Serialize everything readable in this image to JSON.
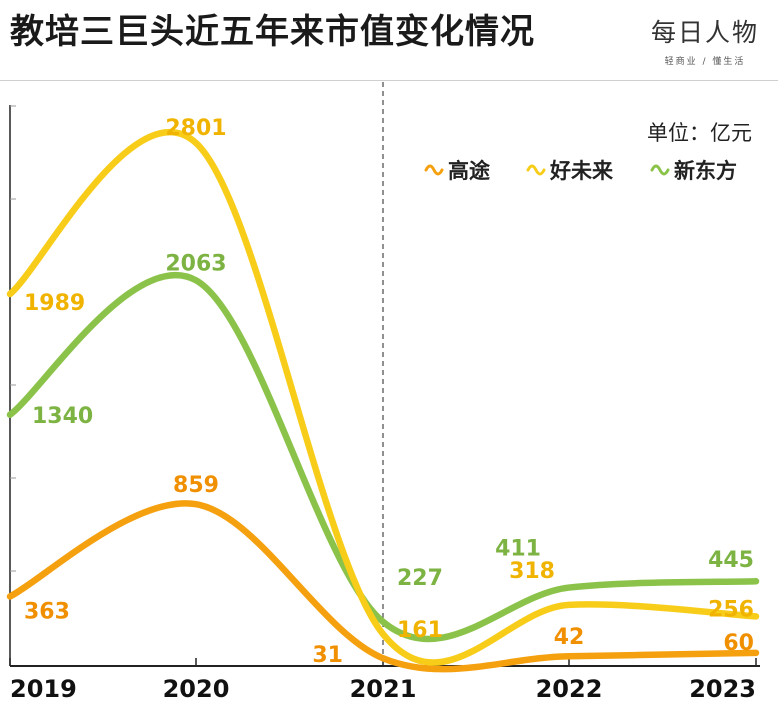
{
  "title": "教培三巨头近五年来市值变化情况",
  "brand": {
    "name": "每日人物",
    "tagline": "轻商业 / 懂生活"
  },
  "colors": {
    "tal_line": "#f7cd1a",
    "neworiental_line": "#8bc34a",
    "gaotu_line": "#f5a00f",
    "tal_label": "#f0b400",
    "neworiental_label": "#7cb342",
    "gaotu_label": "#f09000",
    "axis": "#222222",
    "divider": "#222222"
  },
  "chart_data": {
    "type": "line",
    "title": "教培三巨头近五年来市值变化情况",
    "unit_label": "单位：亿元",
    "x": [
      "2019",
      "2020",
      "2021",
      "2022",
      "2023"
    ],
    "xlabel": "",
    "ylabel": "",
    "ylim": [
      0,
      3000
    ],
    "legend_position": "top-right",
    "divider_at": "2021",
    "series": [
      {
        "key": "tal",
        "name": "好未来",
        "values": [
          1989,
          2801,
          161,
          318,
          256
        ],
        "labels": [
          "1989",
          "2801",
          "161",
          "318",
          "256"
        ]
      },
      {
        "key": "neworiental",
        "name": "新东方",
        "values": [
          1340,
          2063,
          227,
          411,
          445
        ],
        "labels": [
          "1340",
          "2063",
          "227",
          "411",
          "445"
        ]
      },
      {
        "key": "gaotu",
        "name": "高途",
        "values": [
          363,
          859,
          31,
          42,
          60
        ],
        "labels": [
          "363",
          "859",
          "31",
          "42",
          "60"
        ]
      }
    ]
  }
}
